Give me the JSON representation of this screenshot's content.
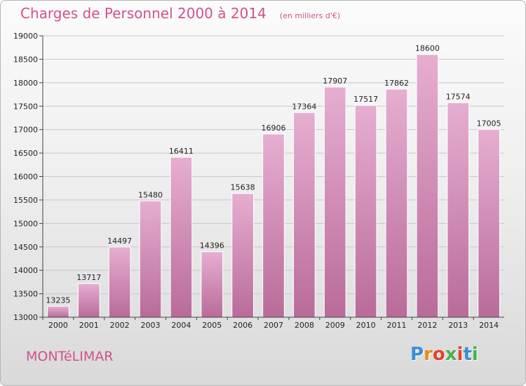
{
  "header": {
    "title": "Charges de Personnel 2000 à 2014",
    "subtitle": "(en milliers d'€)"
  },
  "footer": {
    "city": "MONTéLIMAR",
    "logo": [
      "P",
      "r",
      "o",
      "x",
      "i",
      "t",
      "i"
    ],
    "logo_colors": [
      "#3a8fd6",
      "#e88a1a",
      "#e0442e",
      "#4caf50",
      "#e0442e",
      "#3a8fd6",
      "#4caf50"
    ]
  },
  "colors": {
    "bar": "#d486b4",
    "bar_light": "#e6aed1",
    "bar_dark": "#b96b9a",
    "accent": "#d0528f"
  },
  "chart_data": {
    "type": "bar",
    "title": "Charges de Personnel 2000 à 2014",
    "subtitle": "(en milliers d'€)",
    "categories": [
      "2000",
      "2001",
      "2002",
      "2003",
      "2004",
      "2005",
      "2006",
      "2007",
      "2008",
      "2009",
      "2010",
      "2011",
      "2012",
      "2013",
      "2014"
    ],
    "values": [
      13235,
      13717,
      14497,
      15480,
      16411,
      14396,
      15638,
      16906,
      17364,
      17907,
      17517,
      17862,
      18600,
      17574,
      17005
    ],
    "value_labels": [
      "13235",
      "13717",
      "14497",
      "15480",
      "16411",
      "14396",
      "15638",
      "16906",
      "17364",
      "17907",
      "17517",
      "17862",
      "18600",
      "17574",
      "17005"
    ],
    "ylim": [
      13000,
      19000
    ],
    "yticks": [
      "13000",
      "13500",
      "14000",
      "14500",
      "15000",
      "15500",
      "16000",
      "16500",
      "17000",
      "17500",
      "18000",
      "18500",
      "19000"
    ],
    "grid": true,
    "legend": "none"
  }
}
